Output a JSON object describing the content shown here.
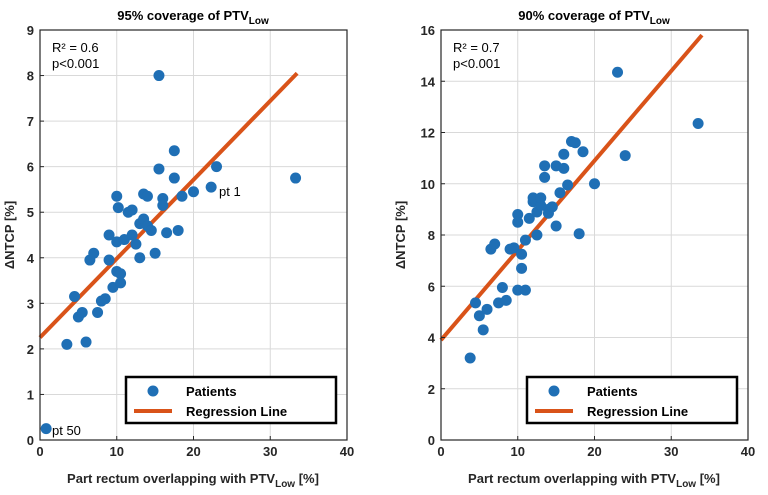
{
  "chart_data": [
    {
      "type": "scatter",
      "title": "95% coverage of PTV",
      "title_subscript": "Low",
      "xlabel": "Part rectum overlapping with PTV",
      "xlabel_subscript": "Low",
      "xlabel_suffix": " [%]",
      "ylabel": "ΔNTCP [%]",
      "xlim": [
        0,
        40
      ],
      "ylim": [
        0,
        9
      ],
      "xticks": [
        0,
        10,
        20,
        30,
        40
      ],
      "yticks": [
        0,
        1,
        2,
        3,
        4,
        5,
        6,
        7,
        8,
        9
      ],
      "grid": true,
      "stats": [
        "R² = 0.6",
        "p<0.001"
      ],
      "legend": {
        "placement": "bottom-right",
        "entries": [
          "Patients",
          "Regression Line"
        ]
      },
      "annotations": [
        {
          "text": "pt 1",
          "x": 22.3,
          "y": 5.55
        },
        {
          "text": "pt 50",
          "x": 0.8,
          "y": 0.25
        }
      ],
      "regression": {
        "x": [
          0,
          33.5
        ],
        "y": [
          2.25,
          8.05
        ]
      },
      "series": [
        {
          "name": "Patients",
          "x": [
            0.8,
            3.5,
            4.5,
            5.0,
            5.5,
            6.0,
            6.5,
            7.0,
            7.5,
            8.0,
            8.5,
            9.0,
            9.0,
            9.5,
            10.0,
            10.0,
            10.0,
            10.2,
            10.5,
            10.5,
            11.0,
            11.5,
            12.0,
            12.0,
            12.5,
            13.0,
            13.0,
            13.5,
            13.5,
            14.0,
            14.0,
            14.5,
            15.0,
            15.5,
            15.5,
            16.0,
            16.0,
            16.5,
            17.5,
            17.5,
            18.0,
            18.5,
            20.0,
            22.3,
            23.0,
            33.3
          ],
          "y": [
            0.25,
            2.1,
            3.15,
            2.7,
            2.8,
            2.15,
            3.95,
            4.1,
            2.8,
            3.05,
            3.1,
            3.95,
            4.5,
            3.35,
            3.7,
            4.35,
            5.35,
            5.1,
            3.45,
            3.65,
            4.4,
            5.0,
            4.5,
            5.05,
            4.3,
            4.0,
            4.75,
            4.85,
            5.4,
            5.35,
            4.7,
            4.6,
            4.1,
            8.0,
            5.95,
            5.3,
            5.15,
            4.55,
            5.75,
            6.35,
            4.6,
            5.35,
            5.45,
            5.55,
            6.0,
            5.75
          ]
        }
      ]
    },
    {
      "type": "scatter",
      "title": "90% coverage of PTV",
      "title_subscript": "Low",
      "xlabel": "Part rectum overlapping with PTV",
      "xlabel_subscript": "Low",
      "xlabel_suffix": " [%]",
      "ylabel": "ΔNTCP [%]",
      "xlim": [
        0,
        40
      ],
      "ylim": [
        0,
        16
      ],
      "xticks": [
        0,
        10,
        20,
        30,
        40
      ],
      "yticks": [
        0,
        2,
        4,
        6,
        8,
        10,
        12,
        14,
        16
      ],
      "grid": true,
      "stats": [
        "R² = 0.7",
        "p<0.001"
      ],
      "legend": {
        "placement": "bottom-right",
        "entries": [
          "Patients",
          "Regression Line"
        ]
      },
      "annotations": [],
      "regression": {
        "x": [
          0,
          34.0
        ],
        "y": [
          3.9,
          15.8
        ]
      },
      "series": [
        {
          "name": "Patients",
          "x": [
            3.8,
            4.5,
            5.0,
            5.5,
            6.0,
            6.5,
            7.0,
            7.5,
            8.0,
            8.5,
            9.0,
            9.5,
            10.0,
            10.0,
            10.0,
            10.5,
            10.5,
            11.0,
            11.0,
            11.5,
            12.0,
            12.0,
            12.5,
            12.5,
            13.0,
            13.0,
            13.5,
            13.5,
            14.0,
            14.0,
            14.5,
            15.0,
            15.0,
            15.5,
            16.0,
            16.0,
            16.5,
            17.0,
            17.5,
            18.0,
            18.5,
            20.0,
            23.0,
            24.0,
            33.5
          ],
          "y": [
            3.2,
            5.35,
            4.85,
            4.3,
            5.1,
            7.45,
            7.65,
            5.35,
            5.95,
            5.45,
            7.45,
            7.5,
            8.8,
            5.85,
            8.5,
            7.25,
            6.7,
            5.85,
            7.8,
            8.65,
            9.3,
            9.45,
            8.9,
            8.0,
            9.15,
            9.45,
            10.7,
            10.25,
            9.0,
            8.85,
            9.1,
            10.7,
            8.35,
            9.65,
            10.6,
            11.15,
            9.95,
            11.65,
            11.6,
            8.05,
            11.25,
            10.0,
            14.35,
            11.1,
            12.35
          ]
        }
      ]
    }
  ],
  "colors": {
    "points": "#1f6fb5",
    "line": "#d95319",
    "grid": "#d9d9d9",
    "axis": "#262626"
  }
}
